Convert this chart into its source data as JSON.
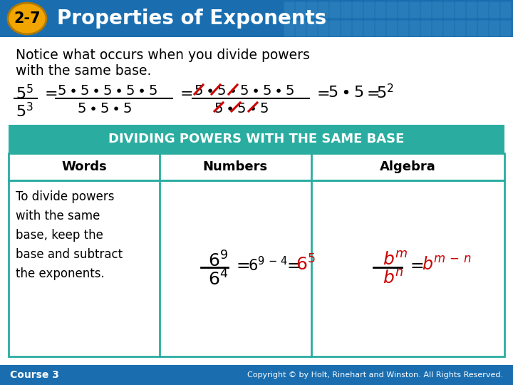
{
  "title_badge": "2-7",
  "title_text": "Properties of Exponents",
  "header_bg": "#1a6eb0",
  "badge_bg": "#f0a500",
  "badge_text_color": "#000000",
  "title_color": "#ffffff",
  "body_bg": "#ffffff",
  "notice_line1": "Notice what occurs when you divide powers",
  "notice_line2": "with the same base.",
  "table_header_bg": "#2aada0",
  "table_header_text": "#ffffff",
  "table_border_color": "#2aada0",
  "col1_header": "Words",
  "col2_header": "Numbers",
  "col3_header": "Algebra",
  "words_body": "To divide powers\nwith the same\nbase, keep the\nbase and subtract\nthe exponents.",
  "footer_bg": "#1a6eb0",
  "footer_left": "Course 3",
  "footer_right": "Copyright © by Holt, Rinehart and Winston. All Rights Reserved.",
  "footer_color": "#ffffff",
  "red_color": "#cc0000",
  "black_color": "#000000",
  "grid_color": "#3a8fc4"
}
